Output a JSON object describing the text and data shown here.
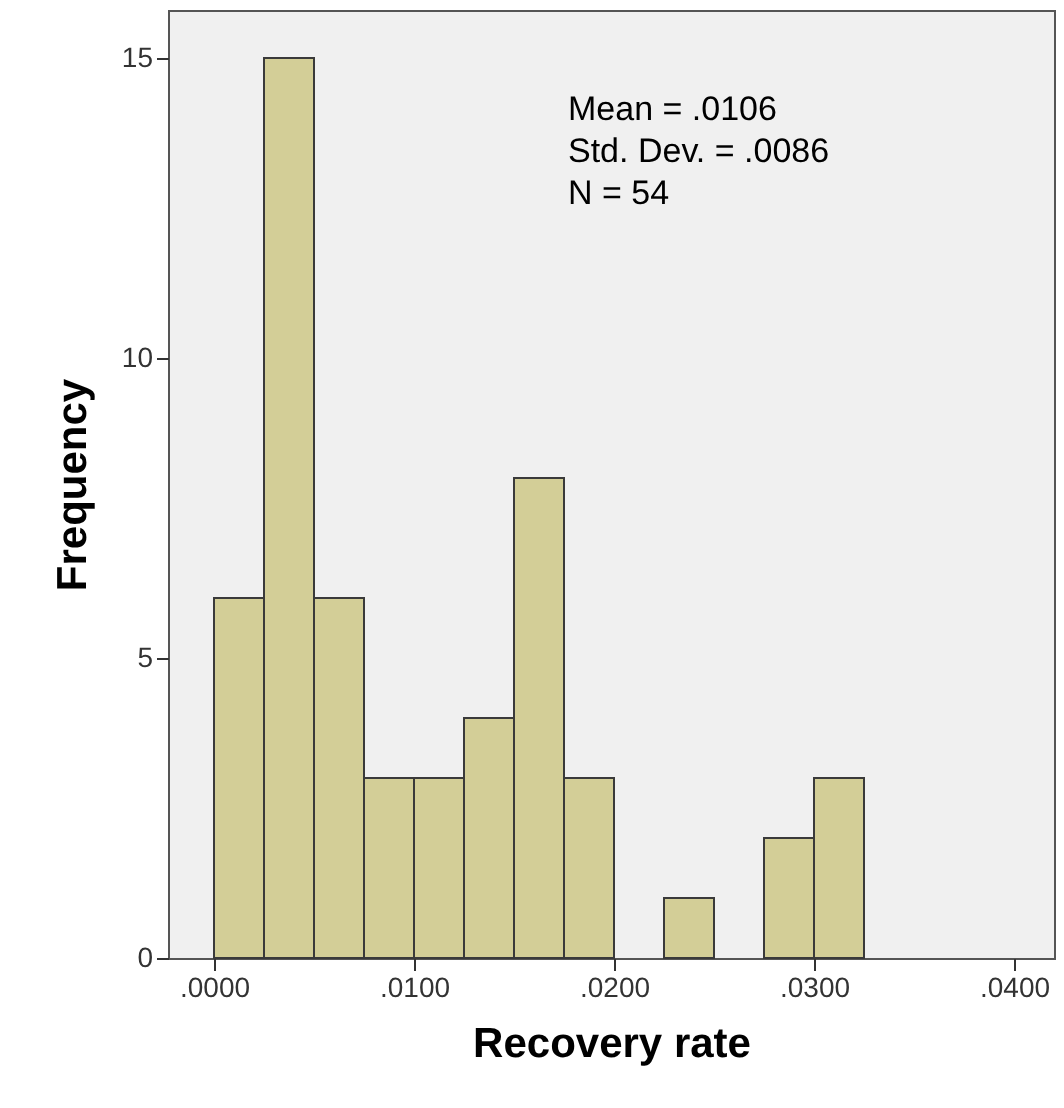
{
  "chart_data": {
    "type": "histogram",
    "xlabel": "Recovery rate",
    "ylabel": "Frequency",
    "bins": [
      0,
      0.0025,
      0.005,
      0.0075,
      0.01,
      0.0125,
      0.015,
      0.0175,
      0.02,
      0.0225,
      0.025,
      0.0275,
      0.03,
      0.0325
    ],
    "values": [
      6,
      15,
      6,
      3,
      3,
      4,
      8,
      3,
      0,
      1,
      0,
      2,
      3
    ],
    "color": "#d3ce97",
    "xlim": [
      -0.0023,
      0.042
    ],
    "xticks": [
      {
        "value": 0,
        "label": ".0000"
      },
      {
        "value": 0.01,
        "label": ".0100"
      },
      {
        "value": 0.02,
        "label": ".0200"
      },
      {
        "value": 0.03,
        "label": ".0300"
      },
      {
        "value": 0.04,
        "label": ".0400"
      }
    ],
    "ylim": [
      0,
      15.8
    ],
    "yticks": [
      0,
      5,
      10,
      15
    ],
    "annotations": [
      "Mean = .0106",
      "Std. Dev. = .0086",
      "N = 54"
    ],
    "grid": false
  }
}
